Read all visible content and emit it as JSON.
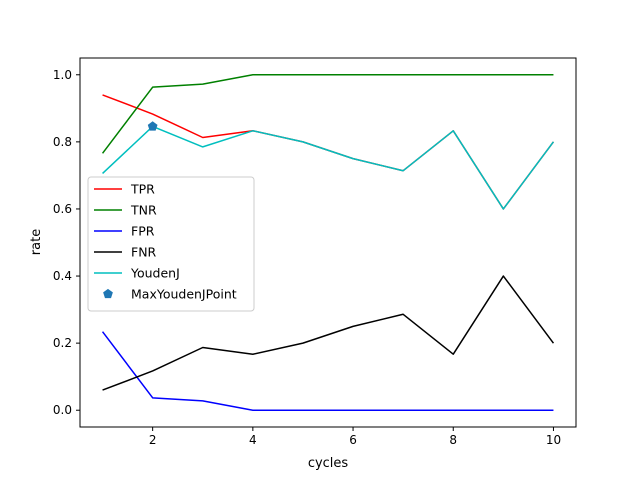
{
  "chart_data": {
    "type": "line",
    "title": "",
    "xlabel": "cycles",
    "ylabel": "rate",
    "xlim": [
      0.55,
      10.45
    ],
    "ylim": [
      -0.05,
      1.05
    ],
    "xticks": [
      2,
      4,
      6,
      8,
      10
    ],
    "yticks": [
      0.0,
      0.2,
      0.4,
      0.6,
      0.8,
      1.0
    ],
    "xtick_labels": [
      "2",
      "4",
      "6",
      "8",
      "10"
    ],
    "ytick_labels": [
      "0.0",
      "0.2",
      "0.4",
      "0.6",
      "0.8",
      "1.0"
    ],
    "grid": false,
    "legend_position": "center-left",
    "x": [
      1,
      2,
      3,
      4,
      5,
      6,
      7,
      8,
      9,
      10
    ],
    "series": [
      {
        "name": "TPR",
        "color": "#ff0000",
        "values": [
          0.94,
          0.883,
          0.813,
          0.833,
          0.8,
          0.75,
          0.714,
          0.833,
          0.6,
          0.8
        ]
      },
      {
        "name": "TNR",
        "color": "#008000",
        "values": [
          0.766,
          0.963,
          0.972,
          1.0,
          1.0,
          1.0,
          1.0,
          1.0,
          1.0,
          1.0
        ]
      },
      {
        "name": "FPR",
        "color": "#0000ff",
        "values": [
          0.234,
          0.037,
          0.028,
          0.0,
          0.0,
          0.0,
          0.0,
          0.0,
          0.0,
          0.0
        ]
      },
      {
        "name": "FNR",
        "color": "#000000",
        "values": [
          0.06,
          0.117,
          0.187,
          0.167,
          0.2,
          0.25,
          0.286,
          0.167,
          0.4,
          0.2
        ]
      },
      {
        "name": "YoudenJ",
        "color": "#00bfbf",
        "values": [
          0.706,
          0.846,
          0.785,
          0.833,
          0.8,
          0.75,
          0.714,
          0.833,
          0.6,
          0.8
        ]
      }
    ],
    "markers": [
      {
        "name": "MaxYoudenJPoint",
        "color": "#1f77b4",
        "shape": "pentagon",
        "x": 2,
        "y": 0.846
      }
    ]
  }
}
